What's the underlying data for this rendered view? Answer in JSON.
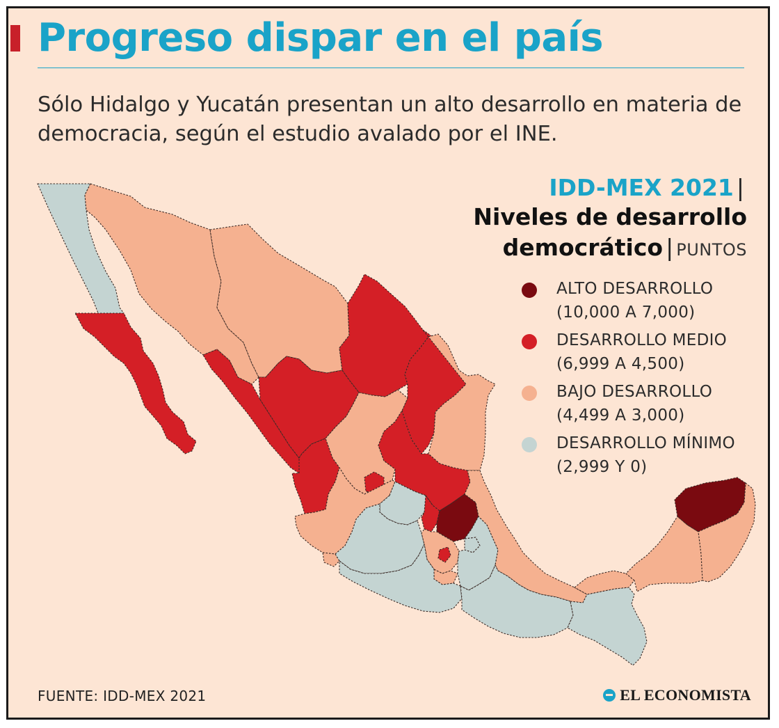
{
  "title": "Progreso dispar en el país",
  "subtitle": "Sólo Hidalgo y Yucatán presentan un alto desarrollo en materia de democracia, según el estudio avalado por el INE.",
  "legend": {
    "kicker": "IDD-MEX 2021",
    "separator": "|",
    "heading_1": "Niveles de desarrollo",
    "heading_2": "democrático",
    "units": "PUNTOS",
    "items": [
      {
        "label": "ALTO DESARROLLO",
        "range": "(10,000 A 7,000)",
        "color": "#7a0a10"
      },
      {
        "label": "DESARROLLO MEDIO",
        "range": "(6,999 A 4,500)",
        "color": "#d41f26"
      },
      {
        "label": "BAJO DESARROLLO",
        "range": "(4,499 A 3,000)",
        "color": "#f5b190"
      },
      {
        "label": "DESARROLLO MÍNIMO",
        "range": "(2,999 Y 0)",
        "color": "#c4d4d2"
      }
    ]
  },
  "map": {
    "levels": {
      "alto": "#7a0a10",
      "medio": "#d41f26",
      "bajo": "#f5b190",
      "minimo": "#c4d4d2"
    },
    "regions": [
      {
        "name": "Baja California",
        "level": "minimo"
      },
      {
        "name": "Baja California Sur",
        "level": "medio"
      },
      {
        "name": "Sonora",
        "level": "bajo"
      },
      {
        "name": "Chihuahua",
        "level": "bajo"
      },
      {
        "name": "Coahuila",
        "level": "medio"
      },
      {
        "name": "Nuevo León",
        "level": "medio"
      },
      {
        "name": "Tamaulipas",
        "level": "bajo"
      },
      {
        "name": "Sinaloa",
        "level": "medio"
      },
      {
        "name": "Durango",
        "level": "medio"
      },
      {
        "name": "Zacatecas",
        "level": "bajo"
      },
      {
        "name": "San Luis Potosí",
        "level": "medio"
      },
      {
        "name": "Nayarit",
        "level": "medio"
      },
      {
        "name": "Aguascalientes",
        "level": "medio"
      },
      {
        "name": "Jalisco",
        "level": "bajo"
      },
      {
        "name": "Guanajuato",
        "level": "minimo"
      },
      {
        "name": "Querétaro",
        "level": "medio"
      },
      {
        "name": "Hidalgo",
        "level": "alto"
      },
      {
        "name": "Colima",
        "level": "bajo"
      },
      {
        "name": "Michoacán",
        "level": "minimo"
      },
      {
        "name": "Estado de México",
        "level": "bajo"
      },
      {
        "name": "Ciudad de México",
        "level": "medio"
      },
      {
        "name": "Morelos",
        "level": "bajo"
      },
      {
        "name": "Tlaxcala",
        "level": "minimo"
      },
      {
        "name": "Puebla",
        "level": "minimo"
      },
      {
        "name": "Veracruz",
        "level": "bajo"
      },
      {
        "name": "Guerrero",
        "level": "minimo"
      },
      {
        "name": "Oaxaca",
        "level": "minimo"
      },
      {
        "name": "Chiapas",
        "level": "minimo"
      },
      {
        "name": "Tabasco",
        "level": "bajo"
      },
      {
        "name": "Campeche",
        "level": "bajo"
      },
      {
        "name": "Yucatán",
        "level": "alto"
      },
      {
        "name": "Quintana Roo",
        "level": "bajo"
      }
    ]
  },
  "source": "FUENTE: IDD-MEX 2021",
  "brand": "EL ECONOMISTA"
}
